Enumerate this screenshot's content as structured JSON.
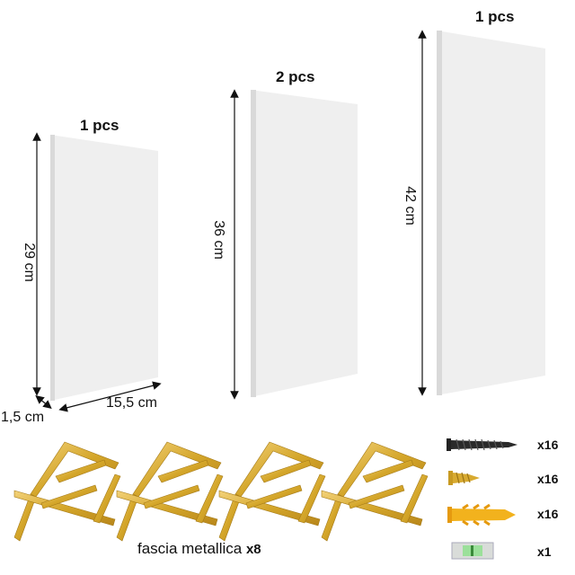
{
  "shelves": [
    {
      "qty_label": "1 pcs",
      "height_label": "29 cm"
    },
    {
      "qty_label": "2 pcs",
      "height_label": "36 cm"
    },
    {
      "qty_label": "1 pcs",
      "height_label": "42 cm"
    }
  ],
  "small_shelf_dims": {
    "depth_label": "1,5 cm",
    "width_label": "15,5 cm"
  },
  "brackets": {
    "label": "fascia metallica",
    "count_label": "x8"
  },
  "hardware": [
    {
      "name": "screw",
      "icon": "screw-icon",
      "count_label": "x16"
    },
    {
      "name": "short-screw",
      "icon": "short-screw-icon",
      "count_label": "x16"
    },
    {
      "name": "wall-plug",
      "icon": "wall-plug-icon",
      "count_label": "x16"
    },
    {
      "name": "spirit-level",
      "icon": "spirit-level-icon",
      "count_label": "x1"
    }
  ],
  "colors": {
    "panel": "#efefef",
    "panel_edge": "#d9d9d9",
    "gold": "#d4a62a",
    "plug": "#f2b21d"
  }
}
